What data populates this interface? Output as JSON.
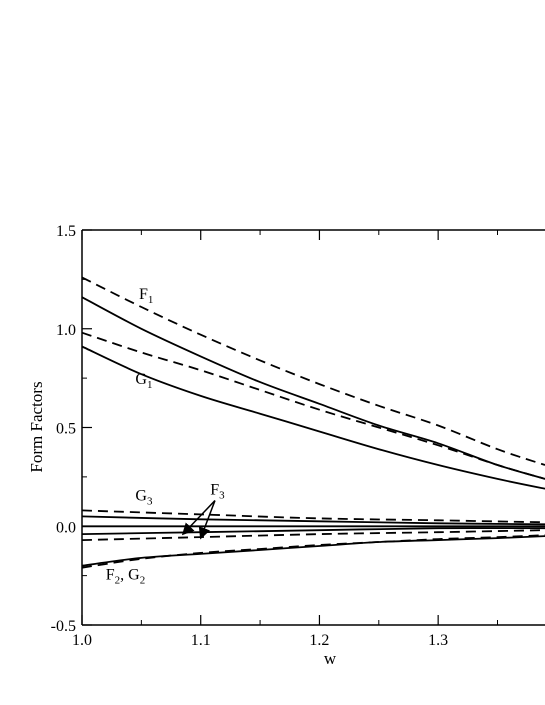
{
  "chart_data": {
    "type": "line",
    "xlabel": "w",
    "ylabel": "Form Factors",
    "xlim": [
      1.0,
      1.39
    ],
    "ylim": [
      -0.5,
      1.5
    ],
    "grid": false,
    "legend": "none",
    "x_ticks": [
      1.0,
      1.1,
      1.2,
      1.3
    ],
    "x_tick_labels": [
      "1.0",
      "1.1",
      "1.2",
      "1.3"
    ],
    "y_ticks": [
      -0.5,
      0.0,
      0.5,
      1.0,
      1.5
    ],
    "y_tick_labels": [
      "-0.5",
      "0.0",
      "0.5",
      "1.0",
      "1.5"
    ],
    "series": [
      {
        "style": "dashed",
        "x": [
          1.0,
          1.05,
          1.1,
          1.15,
          1.2,
          1.25,
          1.3,
          1.35,
          1.39
        ],
        "y": [
          1.26,
          1.11,
          0.97,
          0.84,
          0.72,
          0.61,
          0.51,
          0.39,
          0.31
        ]
      },
      {
        "style": "solid",
        "x": [
          1.0,
          1.05,
          1.1,
          1.15,
          1.2,
          1.25,
          1.3,
          1.35,
          1.39
        ],
        "y": [
          1.16,
          1.0,
          0.86,
          0.73,
          0.62,
          0.51,
          0.42,
          0.31,
          0.24
        ]
      },
      {
        "style": "dashed",
        "x": [
          1.0,
          1.05,
          1.1,
          1.15,
          1.2,
          1.25,
          1.3,
          1.35,
          1.39
        ],
        "y": [
          0.98,
          0.88,
          0.79,
          0.69,
          0.59,
          0.5,
          0.41,
          0.31,
          0.24
        ]
      },
      {
        "style": "solid",
        "x": [
          1.0,
          1.05,
          1.1,
          1.15,
          1.2,
          1.25,
          1.3,
          1.35,
          1.39
        ],
        "y": [
          0.91,
          0.77,
          0.66,
          0.57,
          0.48,
          0.39,
          0.31,
          0.24,
          0.19
        ]
      },
      {
        "style": "dashed",
        "x": [
          1.0,
          1.1,
          1.2,
          1.3,
          1.39
        ],
        "y": [
          0.08,
          0.06,
          0.04,
          0.03,
          0.02
        ]
      },
      {
        "style": "solid",
        "x": [
          1.0,
          1.1,
          1.2,
          1.3,
          1.39
        ],
        "y": [
          0.05,
          0.035,
          0.025,
          0.015,
          0.01
        ]
      },
      {
        "style": "solid",
        "x": [
          1.0,
          1.1,
          1.2,
          1.3,
          1.39
        ],
        "y": [
          0.0,
          0.0,
          0.0,
          0.0,
          0.0
        ]
      },
      {
        "style": "solid",
        "x": [
          1.0,
          1.1,
          1.2,
          1.3,
          1.39
        ],
        "y": [
          -0.04,
          -0.03,
          -0.02,
          -0.01,
          -0.01
        ]
      },
      {
        "style": "dashed",
        "x": [
          1.0,
          1.1,
          1.2,
          1.3,
          1.39
        ],
        "y": [
          -0.07,
          -0.055,
          -0.04,
          -0.03,
          -0.02
        ]
      },
      {
        "style": "solid",
        "x": [
          1.0,
          1.05,
          1.1,
          1.15,
          1.2,
          1.25,
          1.3,
          1.35,
          1.39
        ],
        "y": [
          -0.2,
          -0.16,
          -0.14,
          -0.12,
          -0.1,
          -0.08,
          -0.07,
          -0.06,
          -0.05
        ]
      },
      {
        "style": "dashed",
        "x": [
          1.0,
          1.05,
          1.1,
          1.15,
          1.2,
          1.25,
          1.3,
          1.35,
          1.39
        ],
        "y": [
          -0.21,
          -0.165,
          -0.135,
          -0.115,
          -0.095,
          -0.08,
          -0.065,
          -0.055,
          -0.045
        ]
      }
    ],
    "annotations": [
      {
        "name": "F",
        "sub": "1",
        "x": 1.048,
        "y": 1.15
      },
      {
        "name": "G",
        "sub": "1",
        "x": 1.045,
        "y": 0.72
      },
      {
        "name": "G",
        "sub": "3",
        "x": 1.045,
        "y": 0.13
      },
      {
        "name": "F",
        "sub": "3",
        "x": 1.108,
        "y": 0.16
      },
      {
        "name": "F",
        "sub": "2",
        "tail": ", G",
        "tail_sub": "2",
        "x": 1.02,
        "y": -0.27
      }
    ],
    "arrows": [
      {
        "from": [
          1.112,
          0.13
        ],
        "to": [
          1.085,
          -0.04
        ]
      },
      {
        "from": [
          1.112,
          0.13
        ],
        "to": [
          1.1,
          -0.06
        ]
      }
    ]
  }
}
